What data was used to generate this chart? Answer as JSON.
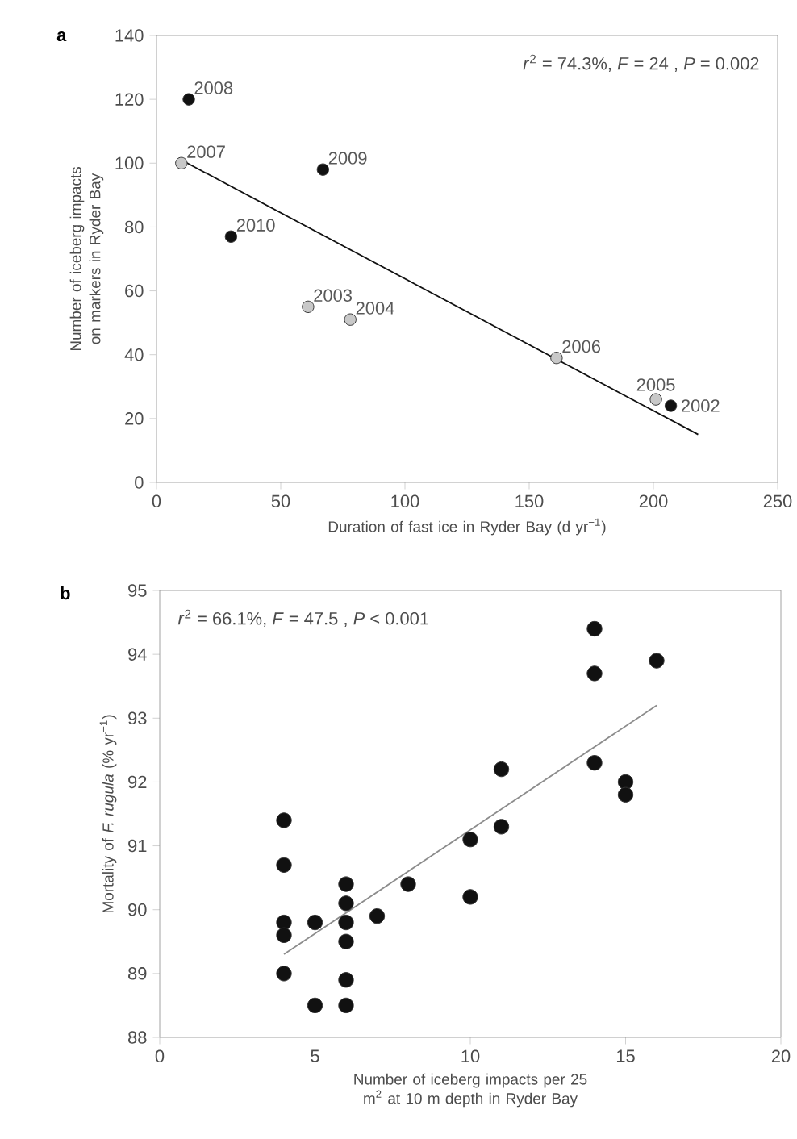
{
  "chart_data": [
    {
      "type": "scatter",
      "title": "a",
      "xlabel": "Duration of fast ice in Ryder Bay (d yr$^{−1}$)",
      "ylabel": "Number of iceberg impacts on markers in Ryder Bay",
      "xlim": [
        0,
        250
      ],
      "xticks": [
        0,
        50,
        100,
        150,
        200,
        250
      ],
      "ylim": [
        0,
        140
      ],
      "yticks": [
        0,
        20,
        40,
        60,
        80,
        100,
        120,
        140
      ],
      "marker": "circle",
      "series": [
        {
          "type": "scatter",
          "color": "#c8c8c8",
          "x": [
            10,
            61,
            78,
            161,
            201
          ],
          "values": [
            100,
            55,
            51,
            39,
            26
          ]
        },
        {
          "type": "scatter",
          "color": "#111111",
          "x": [
            13,
            67,
            30,
            207
          ],
          "values": [
            120,
            98,
            77,
            24
          ]
        },
        {
          "type": "line",
          "marker": "none",
          "color": "#111111",
          "x": [
            10,
            218
          ],
          "values": [
            101,
            15
          ]
        }
      ],
      "annotations": [
        "*r*$^{2}$ = 74.3%, *F* = 24 , *P* = 0.002",
        {
          "text": "2008",
          "x": 13,
          "y": 120
        },
        {
          "text": "2007",
          "x": 10,
          "y": 100
        },
        {
          "text": "2009",
          "x": 67,
          "y": 98
        },
        {
          "text": "2010",
          "x": 30,
          "y": 77
        },
        {
          "text": "2003",
          "x": 61,
          "y": 55
        },
        {
          "text": "2004",
          "x": 78,
          "y": 51
        },
        {
          "text": "2006",
          "x": 161,
          "y": 39
        },
        {
          "text": "2005",
          "x": 201,
          "y": 26
        },
        {
          "text": "2002",
          "x": 207,
          "y": 24
        }
      ]
    },
    {
      "type": "scatter",
      "title": "b",
      "xlabel": "Number of iceberg impacts per 25 m$^{2}$ at 10 m depth in Ryder Bay",
      "ylabel": "Mortality of *F. rugula* (% yr$^{−1}$)",
      "xlim": [
        0,
        20
      ],
      "xticks": [
        0,
        5,
        10,
        15,
        20
      ],
      "ylim": [
        88,
        95
      ],
      "yticks": [
        88,
        89,
        90,
        91,
        92,
        93,
        94,
        95
      ],
      "marker": "circle",
      "series": [
        {
          "type": "scatter",
          "color": "#111111",
          "x": [
            4,
            4,
            4,
            4,
            4,
            5,
            5,
            6,
            6,
            6,
            6,
            6,
            6,
            7,
            8,
            10,
            10,
            11,
            11,
            14,
            14,
            14,
            15,
            15,
            16
          ],
          "values": [
            91.4,
            90.7,
            89.8,
            89.6,
            89.0,
            89.8,
            88.5,
            90.4,
            90.1,
            89.8,
            89.5,
            88.9,
            88.5,
            89.9,
            90.4,
            91.1,
            90.2,
            92.2,
            91.3,
            94.4,
            93.7,
            92.3,
            92.0,
            91.8,
            93.9
          ]
        },
        {
          "type": "line",
          "marker": "none",
          "color": "#8c8c8c",
          "x": [
            4,
            16
          ],
          "values": [
            89.3,
            93.2
          ]
        }
      ],
      "annotations": [
        "*r*$^{2}$ = 66.1%, *F* = 47.5 , *P* < 0.001"
      ]
    }
  ]
}
